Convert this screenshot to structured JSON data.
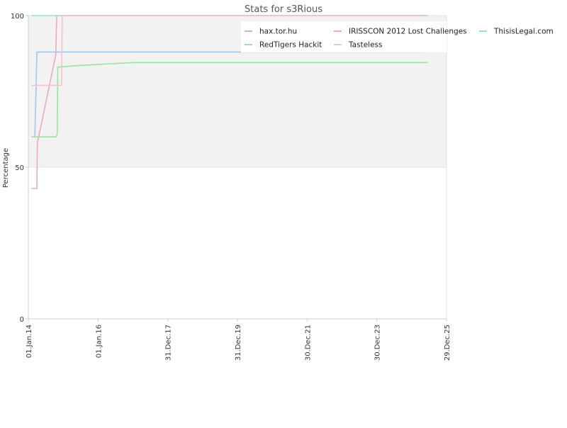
{
  "chart_data": {
    "type": "line",
    "title": "Stats for s3Rious",
    "xlabel": "",
    "ylabel": "Percentage",
    "x_type": "date",
    "xlim": [
      "2014-01-01",
      "2025-12-29"
    ],
    "ylim": [
      0,
      100
    ],
    "yticks": [
      0,
      50,
      100
    ],
    "xticks": [
      {
        "date": "2014-01-01",
        "label": "01.Jan.14"
      },
      {
        "date": "2016-01-01",
        "label": "01.Jan.16"
      },
      {
        "date": "2017-12-31",
        "label": "31.Dec.17"
      },
      {
        "date": "2019-12-31",
        "label": "31.Dec.19"
      },
      {
        "date": "2021-12-30",
        "label": "30.Dec.21"
      },
      {
        "date": "2023-12-30",
        "label": "30.Dec.23"
      },
      {
        "date": "2025-12-29",
        "label": "29.Dec.25"
      }
    ],
    "band": {
      "from": 50,
      "to": 100,
      "color": "#f2f2f2"
    },
    "grid": true,
    "legend_position": "top-right",
    "series": [
      {
        "name": "hax.tor.hu",
        "color": "#9ec8ec",
        "points": [
          [
            "2014-02-03",
            60
          ],
          [
            "2014-03-10",
            60
          ],
          [
            "2014-04-01",
            88
          ],
          [
            "2025-06-15",
            88
          ]
        ]
      },
      {
        "name": "IRISSCON 2012 Lost Challenges",
        "color": "#f0a6c6",
        "points": [
          [
            "2014-02-03",
            43
          ],
          [
            "2014-04-01",
            43
          ],
          [
            "2014-04-05",
            58
          ],
          [
            "2014-10-15",
            87
          ],
          [
            "2014-10-25",
            100
          ],
          [
            "2025-06-15",
            100
          ]
        ]
      },
      {
        "name": "ThisisLegal.com",
        "color": "#8ee4cc",
        "points": [
          [
            "2014-02-03",
            100
          ],
          [
            "2025-06-15",
            100
          ]
        ]
      },
      {
        "name": "RedTigers Hackit",
        "color": "#98e4a2",
        "points": [
          [
            "2014-02-03",
            60
          ],
          [
            "2014-10-20",
            60
          ],
          [
            "2014-11-01",
            61
          ],
          [
            "2014-11-05",
            83
          ],
          [
            "2015-06-01",
            83.5
          ],
          [
            "2016-03-01",
            84
          ],
          [
            "2017-01-01",
            84.5
          ],
          [
            "2025-06-15",
            84.5
          ]
        ]
      },
      {
        "name": "Tasteless",
        "color": "#f4c2c9",
        "points": [
          [
            "2014-02-03",
            77
          ],
          [
            "2014-12-15",
            77
          ],
          [
            "2014-12-22",
            100
          ],
          [
            "2025-06-15",
            100
          ]
        ]
      }
    ]
  }
}
